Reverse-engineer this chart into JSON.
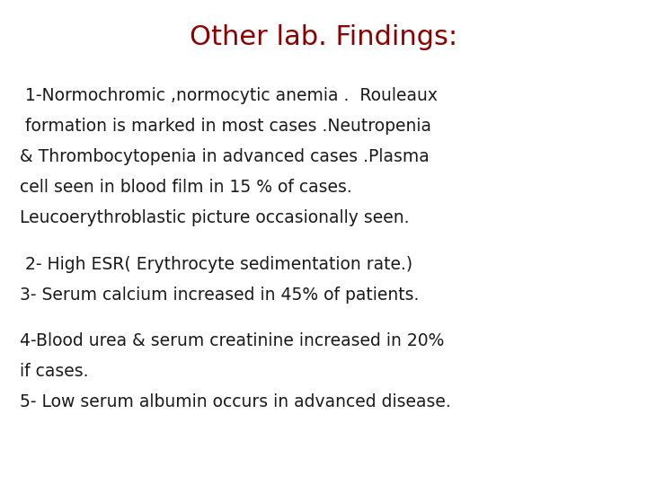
{
  "title": "Other lab. Findings:",
  "title_color": "#8B0000",
  "title_fontsize": 22,
  "title_fontweight": "normal",
  "background_color": "#ffffff",
  "text_color": "#1a1a1a",
  "body_fontsize": 13.5,
  "body_lines": [
    " 1-Normochromic ,normocytic anemia .  Rouleaux",
    " formation is marked in most cases .Neutropenia",
    "& Thrombocytopenia in advanced cases .Plasma",
    "cell seen in blood film in 15 % of cases.",
    "Leucoerythroblastic picture occasionally seen.",
    "",
    " 2- High ESR( Erythrocyte sedimentation rate.)",
    "3- Serum calcium increased in 45% of patients.",
    "",
    "4-Blood urea & serum creatinine increased in 20%",
    "if cases.",
    "5- Low serum albumin occurs in advanced disease."
  ],
  "font_family": "DejaVu Sans"
}
